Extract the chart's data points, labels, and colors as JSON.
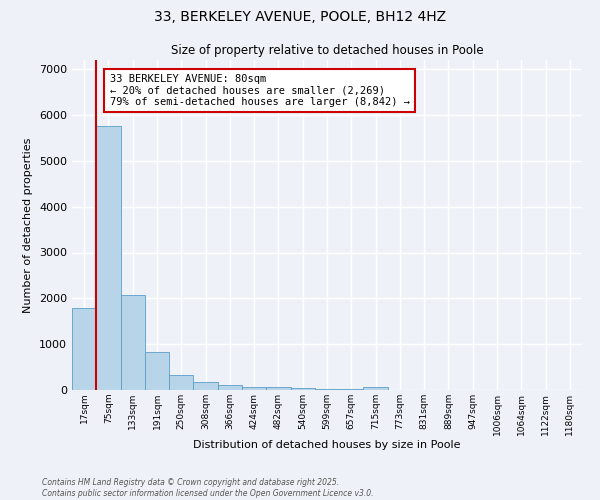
{
  "title": "33, BERKELEY AVENUE, POOLE, BH12 4HZ",
  "subtitle": "Size of property relative to detached houses in Poole",
  "xlabel": "Distribution of detached houses by size in Poole",
  "ylabel": "Number of detached properties",
  "categories": [
    "17sqm",
    "75sqm",
    "133sqm",
    "191sqm",
    "250sqm",
    "308sqm",
    "366sqm",
    "424sqm",
    "482sqm",
    "540sqm",
    "599sqm",
    "657sqm",
    "715sqm",
    "773sqm",
    "831sqm",
    "889sqm",
    "947sqm",
    "1006sqm",
    "1064sqm",
    "1122sqm",
    "1180sqm"
  ],
  "values": [
    1800,
    5750,
    2080,
    830,
    330,
    185,
    110,
    75,
    55,
    40,
    30,
    20,
    55,
    5,
    2,
    1,
    1,
    0,
    0,
    0,
    0
  ],
  "bar_color": "#b8d4e8",
  "bar_edge_color": "#5a9ec9",
  "highlight_color": "#cc0000",
  "vline_bar_index": 1,
  "annotation_text": "33 BERKELEY AVENUE: 80sqm\n← 20% of detached houses are smaller (2,269)\n79% of semi-detached houses are larger (8,842) →",
  "ylim": [
    0,
    7200
  ],
  "yticks": [
    0,
    1000,
    2000,
    3000,
    4000,
    5000,
    6000,
    7000
  ],
  "background_color": "#eef2f8",
  "grid_color": "#ffffff",
  "footnote1": "Contains HM Land Registry data © Crown copyright and database right 2025.",
  "footnote2": "Contains public sector information licensed under the Open Government Licence v3.0."
}
